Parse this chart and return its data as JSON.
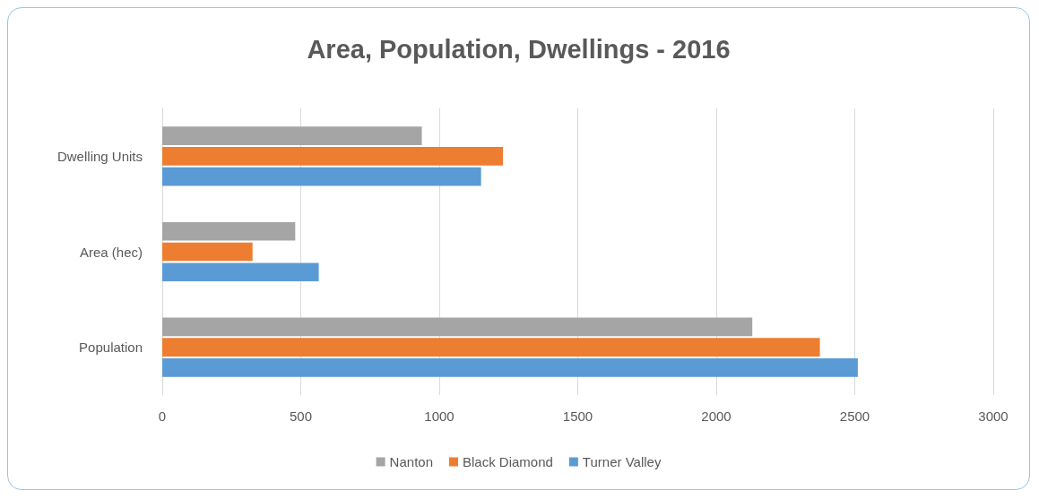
{
  "chart_data": {
    "type": "bar",
    "orientation": "horizontal",
    "title": "Area, Population, Dwellings - 2016",
    "categories": [
      "Dwelling Units",
      "Area (hec)",
      "Population"
    ],
    "series": [
      {
        "name": "Nanton",
        "color": "#a5a5a5",
        "values": [
          937,
          480,
          2130
        ]
      },
      {
        "name": "Black Diamond",
        "color": "#ed7d31",
        "values": [
          1230,
          326,
          2374
        ]
      },
      {
        "name": "Turner Valley",
        "color": "#5b9bd5",
        "values": [
          1151,
          565,
          2511
        ]
      }
    ],
    "xlim": [
      0,
      3000
    ],
    "xticks": [
      0,
      500,
      1000,
      1500,
      2000,
      2500,
      3000
    ],
    "grid": "x",
    "legend": "bottom"
  }
}
